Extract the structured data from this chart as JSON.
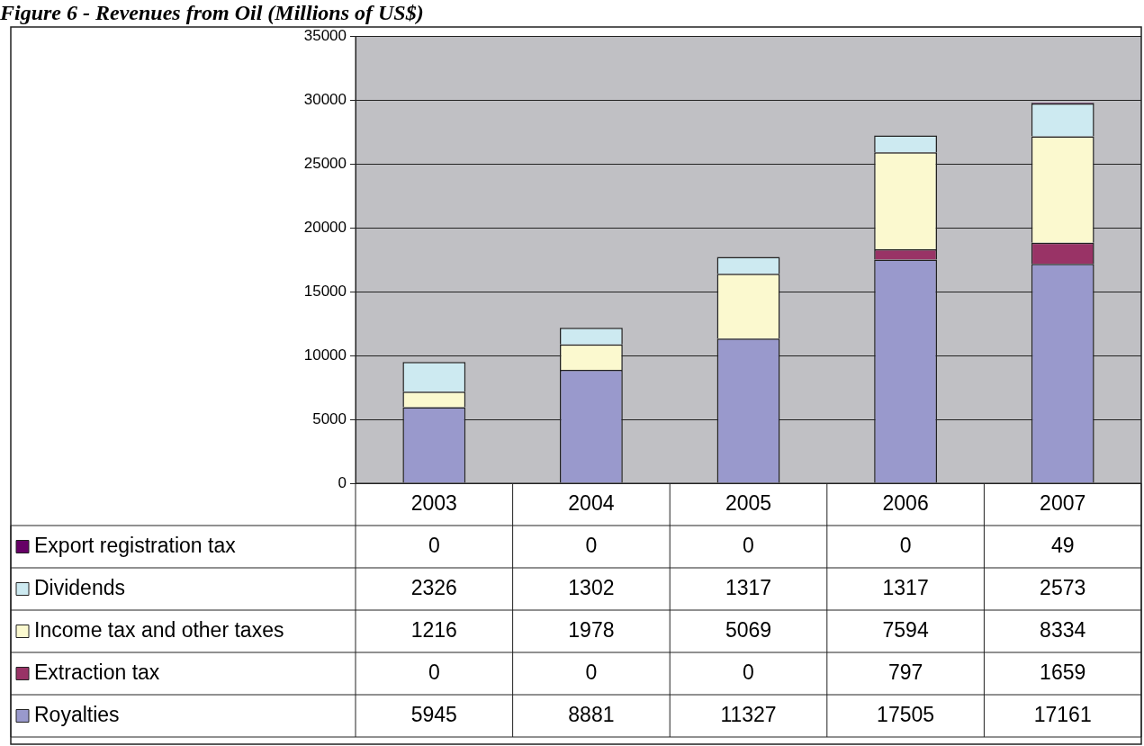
{
  "chart_data": {
    "type": "bar",
    "title": "Figure 6 - Revenues from Oil (Millions of US$)",
    "categories": [
      "2003",
      "2004",
      "2005",
      "2006",
      "2007"
    ],
    "stacked": true,
    "ylim": [
      0,
      35000
    ],
    "yticks": [
      0,
      5000,
      10000,
      15000,
      20000,
      25000,
      30000,
      35000
    ],
    "grid": "y",
    "legend": "bottom left",
    "data_labels": true,
    "series": [
      {
        "name": "Royalties",
        "color": "#9999cc",
        "values": [
          5945,
          8881,
          11327,
          17505,
          17161
        ]
      },
      {
        "name": "Extraction tax",
        "color": "#993366",
        "values": [
          0,
          0,
          0,
          797,
          1659
        ]
      },
      {
        "name": "Income tax and other taxes",
        "color": "#fbf9cf",
        "values": [
          1216,
          1978,
          5069,
          7594,
          8334
        ]
      },
      {
        "name": "Dividends",
        "color": "#cdeaf1",
        "values": [
          2326,
          1302,
          1317,
          1317,
          2573
        ]
      },
      {
        "name": "Export registration tax",
        "color": "#660066",
        "values": [
          0,
          0,
          0,
          0,
          49
        ]
      }
    ]
  }
}
